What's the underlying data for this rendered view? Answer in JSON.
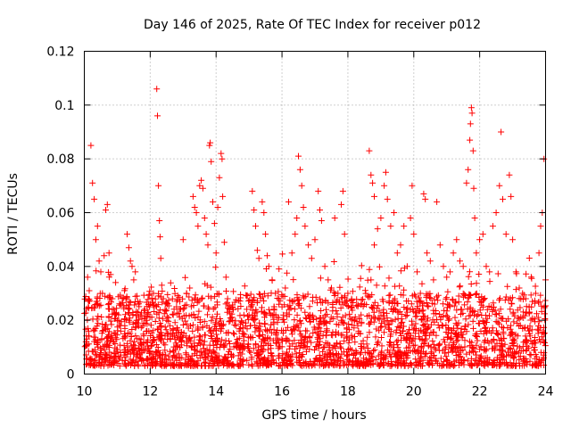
{
  "chart_data": {
    "type": "scatter",
    "title": "Day 146 of 2025, Rate Of TEC Index for receiver p012",
    "xlabel": "GPS time / hours",
    "ylabel": "ROTI / TECUs",
    "xlim": [
      10,
      24
    ],
    "ylim": [
      0,
      0.12
    ],
    "grid": true,
    "marker": "+",
    "marker_color": "#ff0000",
    "x_ticks": [
      10,
      12,
      14,
      16,
      18,
      20,
      22,
      24
    ],
    "x_tick_labels": [
      "10",
      "12",
      "14",
      "16",
      "18",
      "20",
      "22",
      "24"
    ],
    "y_ticks": [
      0,
      0.02,
      0.04,
      0.06,
      0.08,
      0.1,
      0.12
    ],
    "y_tick_labels": [
      "0",
      "0.02",
      "0.04",
      "0.06",
      "0.08",
      "0.1",
      "0.12"
    ],
    "series": [
      {
        "name": "ROTI",
        "points": [
          [
            10.05,
            0.012
          ],
          [
            10.1,
            0.036
          ],
          [
            10.15,
            0.031
          ],
          [
            10.2,
            0.085
          ],
          [
            10.25,
            0.071
          ],
          [
            10.3,
            0.065
          ],
          [
            10.35,
            0.05
          ],
          [
            10.4,
            0.055
          ],
          [
            10.45,
            0.042
          ],
          [
            10.5,
            0.038
          ],
          [
            10.55,
            0.03
          ],
          [
            10.6,
            0.044
          ],
          [
            10.65,
            0.061
          ],
          [
            10.7,
            0.063
          ],
          [
            10.75,
            0.045
          ],
          [
            10.8,
            0.037
          ],
          [
            10.85,
            0.028
          ],
          [
            10.9,
            0.024
          ],
          [
            10.95,
            0.034
          ],
          [
            11.0,
            0.02
          ],
          [
            11.1,
            0.018
          ],
          [
            11.2,
            0.025
          ],
          [
            11.3,
            0.052
          ],
          [
            11.35,
            0.047
          ],
          [
            11.4,
            0.042
          ],
          [
            11.45,
            0.04
          ],
          [
            11.5,
            0.035
          ],
          [
            11.55,
            0.038
          ],
          [
            11.6,
            0.029
          ],
          [
            11.7,
            0.022
          ],
          [
            11.8,
            0.019
          ],
          [
            11.9,
            0.016
          ],
          [
            12.0,
            0.026
          ],
          [
            12.1,
            0.03
          ],
          [
            12.2,
            0.106
          ],
          [
            12.22,
            0.096
          ],
          [
            12.25,
            0.07
          ],
          [
            12.28,
            0.057
          ],
          [
            12.3,
            0.051
          ],
          [
            12.32,
            0.043
          ],
          [
            12.35,
            0.033
          ],
          [
            12.4,
            0.028
          ],
          [
            12.45,
            0.024
          ],
          [
            12.5,
            0.02
          ],
          [
            12.6,
            0.018
          ],
          [
            12.7,
            0.022
          ],
          [
            12.8,
            0.025
          ],
          [
            12.9,
            0.027
          ],
          [
            13.0,
            0.05
          ],
          [
            13.1,
            0.03
          ],
          [
            13.2,
            0.032
          ],
          [
            13.3,
            0.066
          ],
          [
            13.35,
            0.062
          ],
          [
            13.4,
            0.06
          ],
          [
            13.45,
            0.055
          ],
          [
            13.5,
            0.07
          ],
          [
            13.55,
            0.072
          ],
          [
            13.6,
            0.069
          ],
          [
            13.65,
            0.058
          ],
          [
            13.7,
            0.052
          ],
          [
            13.75,
            0.048
          ],
          [
            13.8,
            0.085
          ],
          [
            13.82,
            0.086
          ],
          [
            13.85,
            0.079
          ],
          [
            13.9,
            0.064
          ],
          [
            13.95,
            0.056
          ],
          [
            14.0,
            0.045
          ],
          [
            14.05,
            0.062
          ],
          [
            14.1,
            0.073
          ],
          [
            14.15,
            0.082
          ],
          [
            14.18,
            0.08
          ],
          [
            14.2,
            0.066
          ],
          [
            14.25,
            0.049
          ],
          [
            14.3,
            0.036
          ],
          [
            14.35,
            0.028
          ],
          [
            14.4,
            0.024
          ],
          [
            14.5,
            0.02
          ],
          [
            14.6,
            0.018
          ],
          [
            14.7,
            0.016
          ],
          [
            14.8,
            0.015
          ],
          [
            14.9,
            0.019
          ],
          [
            15.0,
            0.022
          ],
          [
            15.05,
            0.025
          ],
          [
            15.1,
            0.068
          ],
          [
            15.15,
            0.061
          ],
          [
            15.2,
            0.055
          ],
          [
            15.25,
            0.046
          ],
          [
            15.3,
            0.043
          ],
          [
            15.4,
            0.064
          ],
          [
            15.45,
            0.06
          ],
          [
            15.5,
            0.052
          ],
          [
            15.55,
            0.044
          ],
          [
            15.6,
            0.04
          ],
          [
            15.7,
            0.035
          ],
          [
            15.8,
            0.03
          ],
          [
            15.9,
            0.028
          ],
          [
            16.0,
            0.025
          ],
          [
            16.1,
            0.032
          ],
          [
            16.2,
            0.064
          ],
          [
            16.3,
            0.045
          ],
          [
            16.4,
            0.052
          ],
          [
            16.45,
            0.058
          ],
          [
            16.5,
            0.081
          ],
          [
            16.55,
            0.076
          ],
          [
            16.6,
            0.07
          ],
          [
            16.65,
            0.062
          ],
          [
            16.7,
            0.055
          ],
          [
            16.8,
            0.048
          ],
          [
            16.9,
            0.043
          ],
          [
            17.0,
            0.05
          ],
          [
            17.1,
            0.068
          ],
          [
            17.15,
            0.061
          ],
          [
            17.2,
            0.057
          ],
          [
            17.3,
            0.04
          ],
          [
            17.4,
            0.035
          ],
          [
            17.5,
            0.032
          ],
          [
            17.6,
            0.058
          ],
          [
            17.7,
            0.03
          ],
          [
            17.8,
            0.063
          ],
          [
            17.85,
            0.068
          ],
          [
            17.9,
            0.052
          ],
          [
            18.0,
            0.03
          ],
          [
            18.1,
            0.025
          ],
          [
            18.2,
            0.02
          ],
          [
            18.3,
            0.018
          ],
          [
            18.4,
            0.022
          ],
          [
            18.5,
            0.026
          ],
          [
            18.6,
            0.029
          ],
          [
            18.7,
            0.035
          ],
          [
            18.8,
            0.048
          ],
          [
            18.9,
            0.054
          ],
          [
            19.0,
            0.058
          ],
          [
            18.65,
            0.083
          ],
          [
            18.7,
            0.074
          ],
          [
            18.75,
            0.071
          ],
          [
            18.8,
            0.066
          ],
          [
            19.1,
            0.07
          ],
          [
            19.15,
            0.075
          ],
          [
            19.2,
            0.065
          ],
          [
            19.3,
            0.055
          ],
          [
            19.4,
            0.06
          ],
          [
            19.5,
            0.045
          ],
          [
            19.6,
            0.048
          ],
          [
            19.7,
            0.055
          ],
          [
            19.8,
            0.04
          ],
          [
            19.9,
            0.058
          ],
          [
            19.95,
            0.07
          ],
          [
            20.0,
            0.052
          ],
          [
            20.1,
            0.038
          ],
          [
            20.2,
            0.03
          ],
          [
            20.3,
            0.067
          ],
          [
            20.35,
            0.065
          ],
          [
            20.4,
            0.045
          ],
          [
            20.5,
            0.042
          ],
          [
            20.6,
            0.035
          ],
          [
            20.7,
            0.064
          ],
          [
            20.8,
            0.048
          ],
          [
            20.9,
            0.04
          ],
          [
            21.0,
            0.036
          ],
          [
            21.1,
            0.038
          ],
          [
            21.2,
            0.045
          ],
          [
            21.3,
            0.05
          ],
          [
            21.4,
            0.042
          ],
          [
            21.5,
            0.04
          ],
          [
            21.6,
            0.071
          ],
          [
            21.65,
            0.076
          ],
          [
            21.7,
            0.087
          ],
          [
            21.72,
            0.093
          ],
          [
            21.75,
            0.099
          ],
          [
            21.77,
            0.097
          ],
          [
            21.8,
            0.083
          ],
          [
            21.82,
            0.069
          ],
          [
            21.85,
            0.058
          ],
          [
            21.9,
            0.045
          ],
          [
            22.0,
            0.05
          ],
          [
            22.1,
            0.052
          ],
          [
            22.2,
            0.04
          ],
          [
            22.3,
            0.038
          ],
          [
            22.4,
            0.055
          ],
          [
            22.5,
            0.06
          ],
          [
            22.6,
            0.07
          ],
          [
            22.65,
            0.09
          ],
          [
            22.7,
            0.065
          ],
          [
            22.8,
            0.052
          ],
          [
            22.9,
            0.074
          ],
          [
            22.95,
            0.066
          ],
          [
            23.0,
            0.05
          ],
          [
            23.1,
            0.038
          ],
          [
            23.2,
            0.032
          ],
          [
            23.3,
            0.03
          ],
          [
            23.4,
            0.028
          ],
          [
            23.5,
            0.025
          ],
          [
            23.6,
            0.027
          ],
          [
            23.7,
            0.03
          ],
          [
            23.8,
            0.045
          ],
          [
            23.85,
            0.055
          ],
          [
            23.9,
            0.06
          ],
          [
            23.95,
            0.08
          ],
          [
            24.0,
            0.035
          ]
        ],
        "dense_band": {
          "x_range": [
            10,
            24
          ],
          "typical_range": [
            0.003,
            0.03
          ],
          "count": 2600,
          "seed": 146
        }
      }
    ]
  }
}
